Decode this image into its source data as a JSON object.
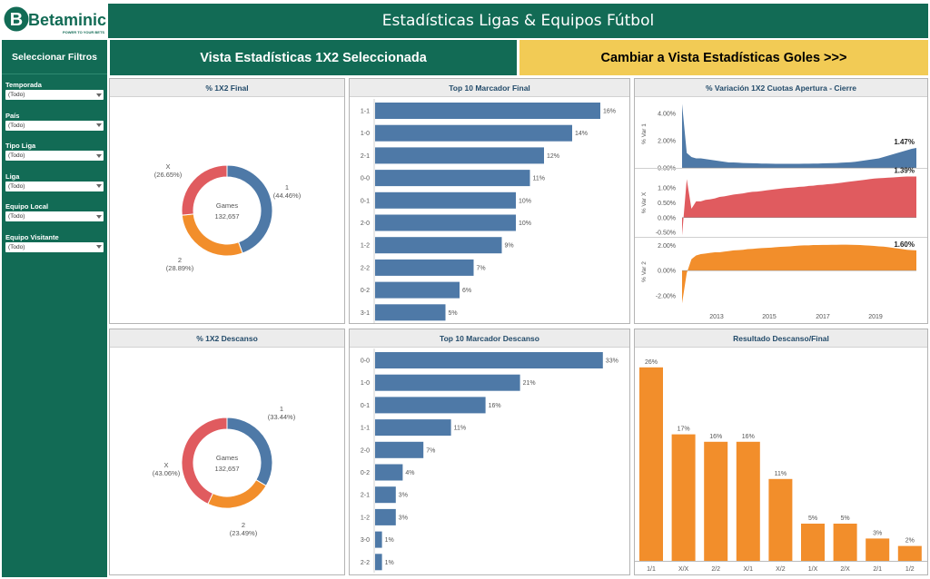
{
  "app": {
    "logo_text": "Betaminic",
    "logo_tagline": "POWER TO YOUR BETS",
    "title": "Estadísticas Ligas & Equipos Fútbol"
  },
  "sidebar": {
    "heading": "Seleccionar Filtros",
    "filters": [
      {
        "label": "Temporada",
        "value": "(Todo)"
      },
      {
        "label": "País",
        "value": "(Todo)"
      },
      {
        "label": "Tipo Liga",
        "value": "(Todo)"
      },
      {
        "label": "Liga",
        "value": "(Todo)"
      },
      {
        "label": "Equipo Local",
        "value": "(Todo)"
      },
      {
        "label": "Equipo Visitante",
        "value": "(Todo)"
      }
    ]
  },
  "views": {
    "current": "Vista Estadísticas 1X2 Seleccionada",
    "switch": "Cambiar a Vista Estadísticas Goles >>>"
  },
  "colors": {
    "brand_green": "#126b55",
    "accent_yellow": "#f2cb55",
    "blue": "#4e79a7",
    "red": "#e05b5f",
    "orange": "#f28e2b"
  },
  "chart_data": [
    {
      "type": "pie",
      "title": "% 1X2 Final",
      "center_label": "Games",
      "center_value": "132,657",
      "slices": [
        {
          "label": "1",
          "value": 44.46,
          "text": "(44.46%)",
          "color": "#4e79a7"
        },
        {
          "label": "2",
          "value": 28.89,
          "text": "(28.89%)",
          "color": "#f28e2b"
        },
        {
          "label": "X",
          "value": 26.65,
          "text": "(26.65%)",
          "color": "#e05b5f"
        }
      ]
    },
    {
      "type": "bar",
      "title": "Top 10 Marcador Final",
      "categories": [
        "1-1",
        "1-0",
        "2-1",
        "0-0",
        "0-1",
        "2-0",
        "1-2",
        "2-2",
        "0-2",
        "3-1"
      ],
      "values": [
        16,
        14,
        12,
        11,
        10,
        10,
        9,
        7,
        6,
        5
      ],
      "labels": [
        "16%",
        "14%",
        "12%",
        "11%",
        "10%",
        "10%",
        "9%",
        "7%",
        "6%",
        "5%"
      ]
    },
    {
      "type": "area",
      "title": "% Variación 1X2 Cuotas Apertura - Cierre",
      "x_ticks": [
        "2013",
        "2015",
        "2017",
        "2019"
      ],
      "panels": [
        {
          "ylabel": "% Var 1",
          "ticks": [
            "4.00%",
            "2.00%",
            "0.00%"
          ],
          "yrange": [
            0,
            5
          ],
          "end_label": "1.47%",
          "color": "#4e79a7",
          "values": [
            4.7,
            1.1,
            0.8,
            0.7,
            0.7,
            0.65,
            0.6,
            0.55,
            0.5,
            0.45,
            0.4,
            0.4,
            0.38,
            0.36,
            0.35,
            0.34,
            0.33,
            0.32,
            0.32,
            0.31,
            0.3,
            0.3,
            0.3,
            0.3,
            0.3,
            0.3,
            0.31,
            0.31,
            0.32,
            0.32,
            0.33,
            0.34,
            0.35,
            0.36,
            0.38,
            0.4,
            0.42,
            0.45,
            0.5,
            0.55,
            0.6,
            0.65,
            0.7,
            0.8,
            0.9,
            1.0,
            1.1,
            1.2,
            1.3,
            1.4,
            1.47
          ]
        },
        {
          "ylabel": "% Var X",
          "ticks": [
            "1.00%",
            "0.50%",
            "0.00%",
            "-0.50%"
          ],
          "yrange": [
            -0.65,
            1.65
          ],
          "end_label": "1.39%",
          "color": "#e05b5f",
          "values": [
            -0.6,
            1.3,
            0.3,
            0.55,
            0.55,
            0.6,
            0.62,
            0.65,
            0.7,
            0.72,
            0.75,
            0.78,
            0.8,
            0.82,
            0.85,
            0.87,
            0.88,
            0.9,
            0.92,
            0.94,
            0.96,
            0.98,
            1.0,
            1.01,
            1.02,
            1.04,
            1.05,
            1.07,
            1.08,
            1.1,
            1.11,
            1.13,
            1.14,
            1.16,
            1.18,
            1.2,
            1.22,
            1.24,
            1.26,
            1.28,
            1.3,
            1.32,
            1.33,
            1.34,
            1.35,
            1.36,
            1.37,
            1.38,
            1.39,
            1.39,
            1.39
          ]
        },
        {
          "ylabel": "% Var 2",
          "ticks": [
            "2.00%",
            "0.00%",
            "-2.00%"
          ],
          "yrange": [
            -2.8,
            2.6
          ],
          "end_label": "1.60%",
          "color": "#f28e2b",
          "values": [
            -2.6,
            -0.2,
            0.9,
            1.2,
            1.3,
            1.35,
            1.4,
            1.45,
            1.45,
            1.5,
            1.55,
            1.6,
            1.62,
            1.65,
            1.7,
            1.72,
            1.75,
            1.78,
            1.8,
            1.82,
            1.85,
            1.88,
            1.9,
            1.92,
            1.95,
            1.98,
            2.0,
            2.0,
            2.02,
            2.02,
            2.03,
            2.03,
            2.04,
            2.04,
            2.05,
            2.05,
            2.04,
            2.03,
            2.02,
            2.0,
            1.98,
            1.95,
            1.92,
            1.9,
            1.85,
            1.8,
            1.75,
            1.7,
            1.65,
            1.62,
            1.6
          ]
        }
      ]
    },
    {
      "type": "pie",
      "title": "% 1X2 Descanso",
      "center_label": "Games",
      "center_value": "132,657",
      "slices": [
        {
          "label": "1",
          "value": 33.44,
          "text": "(33.44%)",
          "color": "#4e79a7"
        },
        {
          "label": "2",
          "value": 23.49,
          "text": "(23.49%)",
          "color": "#f28e2b"
        },
        {
          "label": "X",
          "value": 43.06,
          "text": "(43.06%)",
          "color": "#e05b5f"
        }
      ]
    },
    {
      "type": "bar",
      "title": "Top 10 Marcador Descanso",
      "categories": [
        "0-0",
        "1-0",
        "0-1",
        "1-1",
        "2-0",
        "0-2",
        "2-1",
        "1-2",
        "3-0",
        "2-2"
      ],
      "values": [
        33,
        21,
        16,
        11,
        7,
        4,
        3,
        3,
        1,
        1
      ],
      "labels": [
        "33%",
        "21%",
        "16%",
        "11%",
        "7%",
        "4%",
        "3%",
        "3%",
        "1%",
        "1%"
      ]
    },
    {
      "type": "bar",
      "title": "Resultado Descanso/Final",
      "categories": [
        "1/1",
        "X/X",
        "2/2",
        "X/1",
        "X/2",
        "1/X",
        "2/X",
        "2/1",
        "1/2"
      ],
      "values": [
        26,
        17,
        16,
        16,
        11,
        5,
        5,
        3,
        2
      ],
      "labels": [
        "26%",
        "17%",
        "16%",
        "16%",
        "11%",
        "5%",
        "5%",
        "3%",
        "2%"
      ],
      "color": "#f28e2b"
    }
  ]
}
